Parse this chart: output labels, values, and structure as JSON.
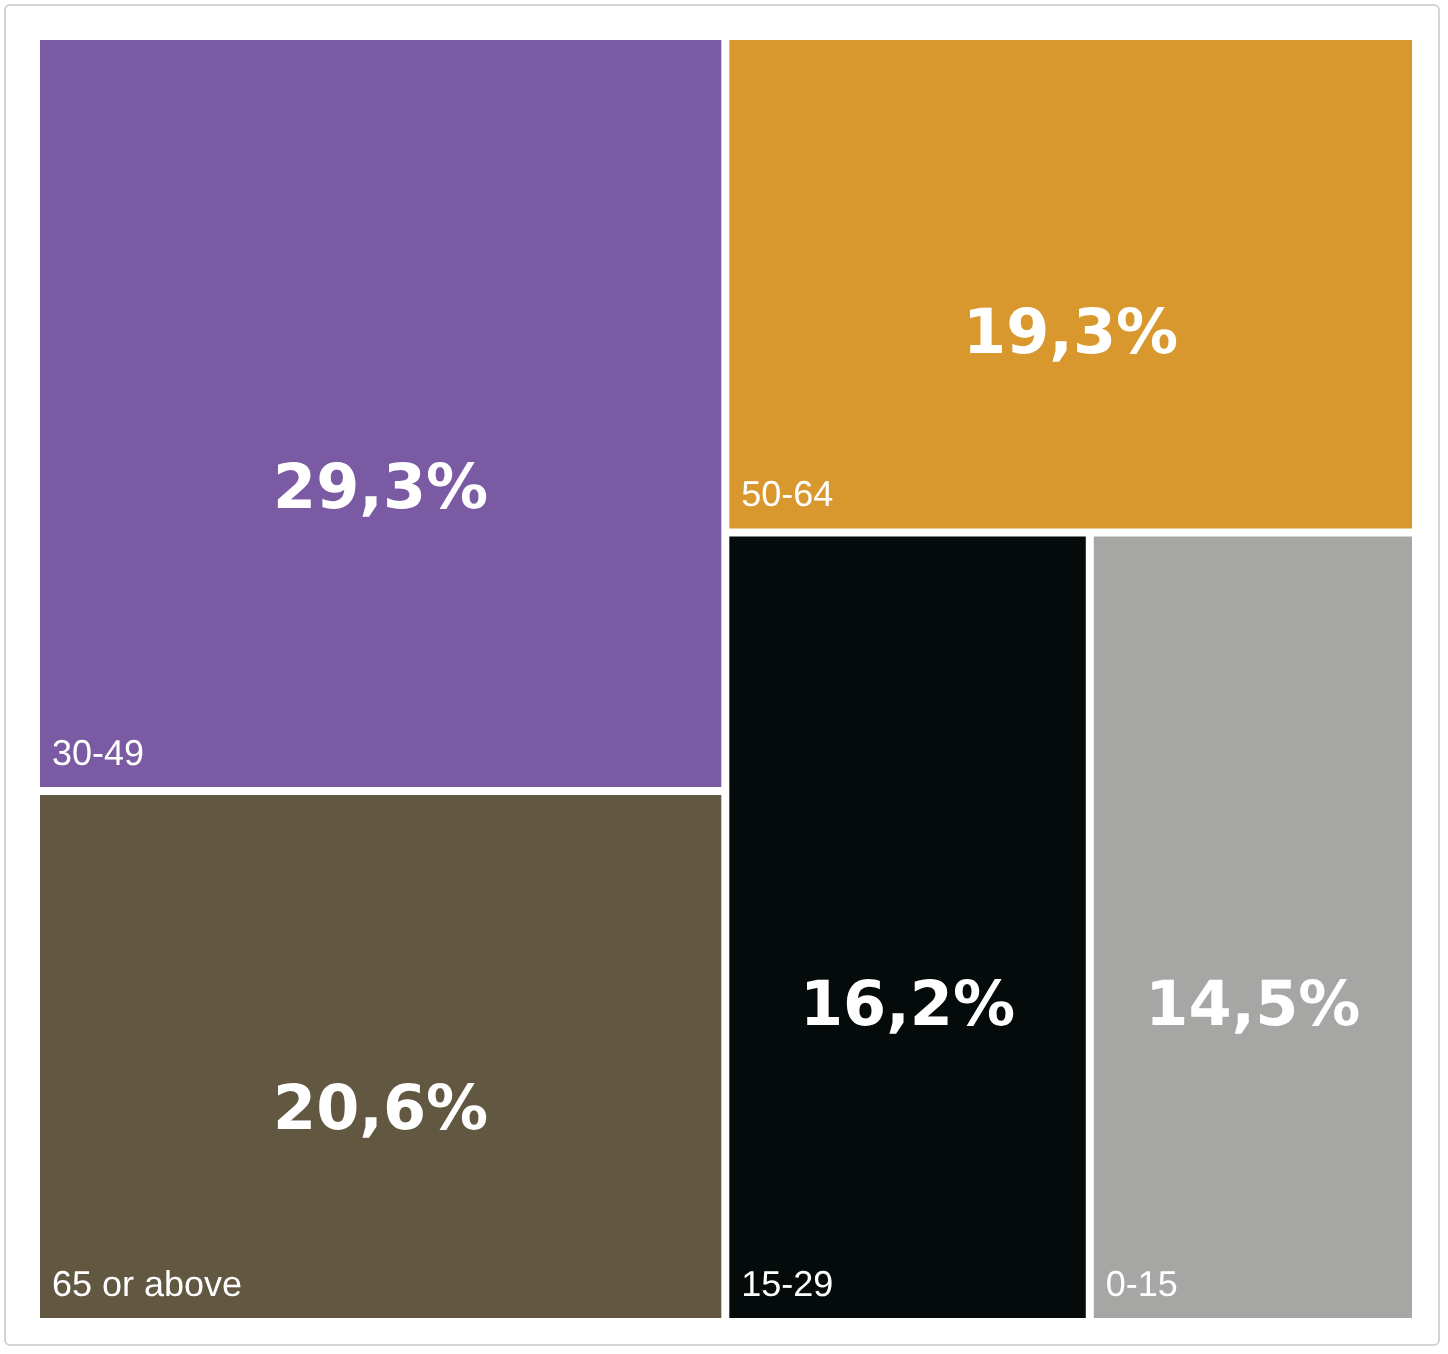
{
  "chart_data": {
    "type": "other",
    "categories": [
      "30-49",
      "65 or above",
      "50-64",
      "15-29",
      "0-15"
    ],
    "values": [
      29.3,
      20.6,
      19.3,
      16.2,
      14.5
    ],
    "value_labels": [
      "29,3%",
      "20,6%",
      "19,3%",
      "16,2%",
      "14,5%"
    ],
    "colors": [
      "#7a5aa3",
      "#625741",
      "#d8982e",
      "#050a0a",
      "#a6a6a4"
    ]
  }
}
